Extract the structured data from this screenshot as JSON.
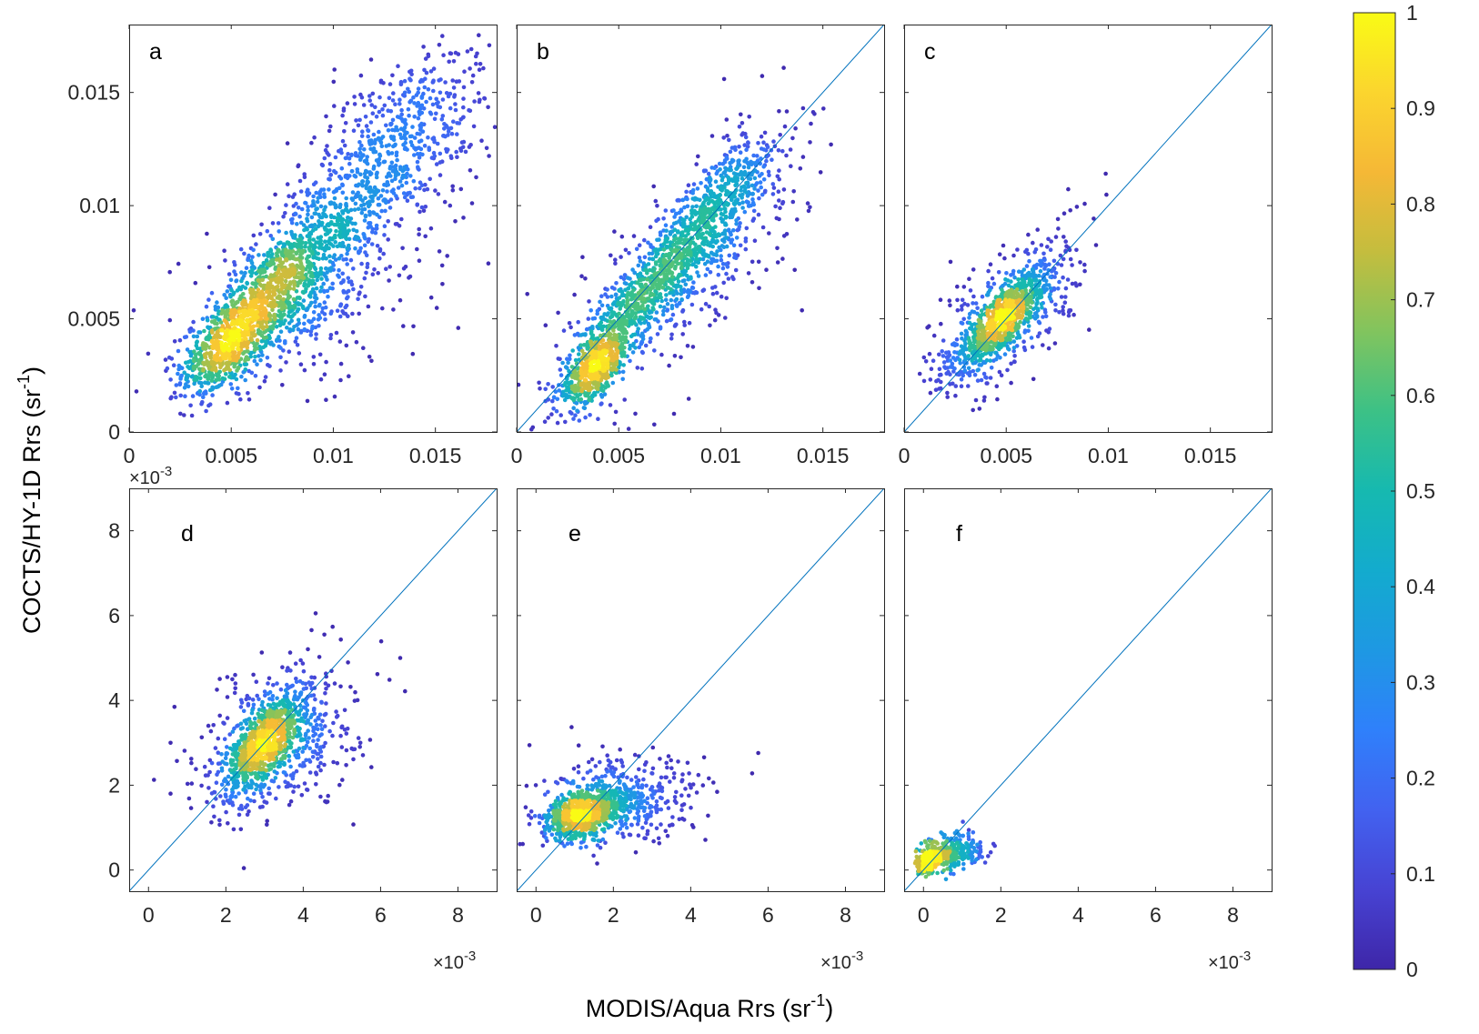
{
  "chart_data": {
    "type": "scatter",
    "density_colored": true,
    "ylabel": "COCTS/HY-1D Rrs (sr",
    "ylabel_sup": "-1",
    "ylabel_end": ")",
    "xlabel": "MODIS/Aqua Rrs (sr",
    "xlabel_sup": "-1",
    "xlabel_end": ")",
    "colorbar": {
      "range": [
        0,
        1
      ],
      "ticks": [
        "0",
        "0.1",
        "0.2",
        "0.3",
        "0.4",
        "0.5",
        "0.6",
        "0.7",
        "0.8",
        "0.9",
        "1"
      ],
      "colormap": [
        "#3e26a8",
        "#4743d3",
        "#4262f0",
        "#2f80fb",
        "#1e98e3",
        "#13abce",
        "#16b9b0",
        "#3cc186",
        "#81c45e",
        "#c4bd3e",
        "#f5b836",
        "#fbd52e",
        "#f9fb15"
      ]
    },
    "panels": [
      {
        "label": "a",
        "xlim": [
          0,
          0.018
        ],
        "ylim": [
          0,
          0.018
        ],
        "xticks": [
          0,
          0.005,
          0.01,
          0.015
        ],
        "xtick_labels": [
          "0",
          "0.005",
          "0.01",
          "0.015"
        ],
        "yticks": [
          0,
          0.005,
          0.01,
          0.015
        ],
        "ytick_labels": [
          "0",
          "0.005",
          "0.01",
          "0.015"
        ],
        "x_multiplier": "",
        "one_to_one_line": false,
        "clusters": [
          {
            "center": [
              0.0048,
              0.0038
            ],
            "spread": [
              0.0011,
              0.0011
            ],
            "corr": 0.55,
            "n": 650
          },
          {
            "center": [
              0.0068,
              0.0062
            ],
            "spread": [
              0.0016,
              0.0016
            ],
            "corr": 0.75,
            "n": 550
          },
          {
            "center": [
              0.0092,
              0.0082
            ],
            "spread": [
              0.0022,
              0.0022
            ],
            "corr": 0.7,
            "n": 500
          },
          {
            "center": [
              0.013,
              0.0125
            ],
            "spread": [
              0.0026,
              0.0026
            ],
            "corr": 0.65,
            "n": 650
          },
          {
            "center": [
              0.0085,
              0.0055
            ],
            "spread": [
              0.003,
              0.0018
            ],
            "corr": 0.3,
            "n": 300
          }
        ]
      },
      {
        "label": "b",
        "xlim": [
          0,
          0.018
        ],
        "ylim": [
          0,
          0.018
        ],
        "xticks": [
          0,
          0.005,
          0.01,
          0.015
        ],
        "xtick_labels": [
          "0",
          "0.005",
          "0.01",
          "0.015"
        ],
        "yticks": [],
        "ytick_labels": [],
        "x_multiplier": "",
        "one_to_one_line": true,
        "clusters": [
          {
            "center": [
              0.0038,
              0.0028
            ],
            "spread": [
              0.0009,
              0.0009
            ],
            "corr": 0.65,
            "n": 600
          },
          {
            "center": [
              0.0065,
              0.0062
            ],
            "spread": [
              0.0016,
              0.0016
            ],
            "corr": 0.82,
            "n": 650
          },
          {
            "center": [
              0.0098,
              0.01
            ],
            "spread": [
              0.0016,
              0.0016
            ],
            "corr": 0.75,
            "n": 550
          },
          {
            "center": [
              0.008,
              0.007
            ],
            "spread": [
              0.003,
              0.003
            ],
            "corr": 0.7,
            "n": 350
          }
        ]
      },
      {
        "label": "c",
        "xlim": [
          0,
          0.018
        ],
        "ylim": [
          0,
          0.018
        ],
        "xticks": [
          0,
          0.005,
          0.01,
          0.015
        ],
        "xtick_labels": [
          "0",
          "0.005",
          "0.01",
          "0.015"
        ],
        "yticks": [],
        "ytick_labels": [],
        "x_multiplier": "",
        "one_to_one_line": true,
        "clusters": [
          {
            "center": [
              0.0048,
              0.005
            ],
            "spread": [
              0.0011,
              0.0011
            ],
            "corr": 0.82,
            "n": 900
          },
          {
            "center": [
              0.0052,
              0.0052
            ],
            "spread": [
              0.002,
              0.002
            ],
            "corr": 0.6,
            "n": 350
          }
        ]
      },
      {
        "label": "d",
        "xlim": [
          -0.0005,
          0.009
        ],
        "ylim": [
          -0.0005,
          0.009
        ],
        "xticks": [
          0,
          0.002,
          0.004,
          0.006,
          0.008
        ],
        "xtick_labels": [
          "0",
          "2",
          "4",
          "6",
          "8"
        ],
        "yticks": [
          0,
          0.002,
          0.004,
          0.006,
          0.008
        ],
        "ytick_labels": [
          "0",
          "2",
          "4",
          "6",
          "8"
        ],
        "x_multiplier": "×10",
        "x_multiplier_exp": "-3",
        "one_to_one_line": true,
        "clusters": [
          {
            "center": [
              0.003,
              0.003
            ],
            "spread": [
              0.0005,
              0.0006
            ],
            "corr": 0.7,
            "n": 800
          },
          {
            "center": [
              0.0034,
              0.0031
            ],
            "spread": [
              0.001,
              0.0009
            ],
            "corr": 0.35,
            "n": 500
          }
        ]
      },
      {
        "label": "e",
        "xlim": [
          -0.0005,
          0.009
        ],
        "ylim": [
          -0.0005,
          0.009
        ],
        "xticks": [
          0,
          0.002,
          0.004,
          0.006,
          0.008
        ],
        "xtick_labels": [
          "0",
          "2",
          "4",
          "6",
          "8"
        ],
        "yticks": [],
        "ytick_labels": [],
        "x_multiplier": "×10",
        "x_multiplier_exp": "-3",
        "one_to_one_line": true,
        "clusters": [
          {
            "center": [
              0.0012,
              0.0013
            ],
            "spread": [
              0.0005,
              0.00028
            ],
            "corr": 0.3,
            "n": 700
          },
          {
            "center": [
              0.0022,
              0.0016
            ],
            "spread": [
              0.0011,
              0.0005
            ],
            "corr": 0.2,
            "n": 450
          }
        ]
      },
      {
        "label": "f",
        "xlim": [
          -0.0005,
          0.009
        ],
        "ylim": [
          -0.0005,
          0.009
        ],
        "xticks": [
          0,
          0.002,
          0.004,
          0.006,
          0.008
        ],
        "xtick_labels": [
          "0",
          "2",
          "4",
          "6",
          "8"
        ],
        "yticks": [],
        "ytick_labels": [],
        "x_multiplier": "×10",
        "x_multiplier_exp": "-3",
        "one_to_one_line": true,
        "clusters": [
          {
            "center": [
              0.0001,
              0.0002
            ],
            "spread": [
              0.00012,
              0.00012
            ],
            "corr": 0.3,
            "n": 250
          },
          {
            "center": [
              0.0007,
              0.0004
            ],
            "spread": [
              0.0004,
              0.00022
            ],
            "corr": 0.2,
            "n": 300
          }
        ]
      }
    ]
  }
}
